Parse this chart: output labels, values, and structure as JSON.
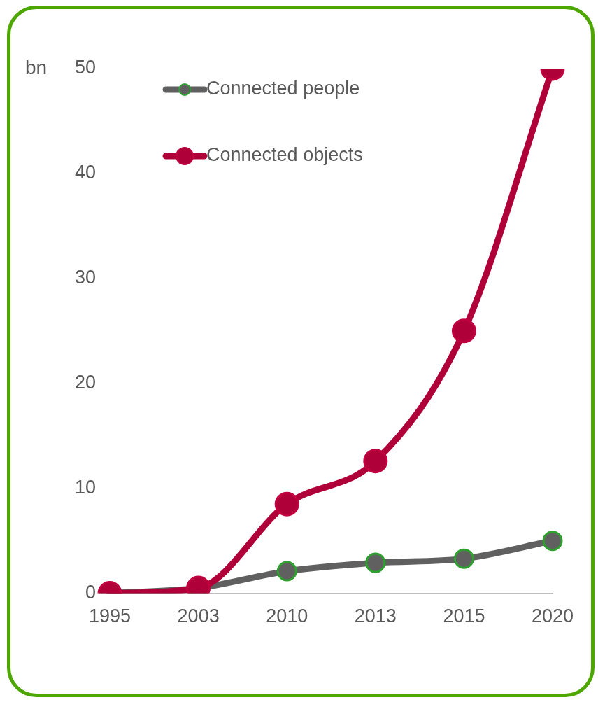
{
  "chart_data": {
    "type": "line",
    "ylabel": "bn",
    "categories": [
      "1995",
      "2003",
      "2010",
      "2013",
      "2015",
      "2020"
    ],
    "series": [
      {
        "name": "Connected people",
        "color": "#606060",
        "values": [
          0,
          0.5,
          2.1,
          2.9,
          3.3,
          5
        ]
      },
      {
        "name": "Connected objects",
        "color": "#b0003a",
        "values": [
          0,
          0.5,
          8.5,
          12.6,
          25,
          50
        ]
      }
    ],
    "ylim": [
      0,
      50
    ],
    "yticks": [
      0,
      10,
      20,
      30,
      40,
      50
    ],
    "grid": false,
    "legend": "top left",
    "marker": "circle",
    "line_style": "solid"
  }
}
